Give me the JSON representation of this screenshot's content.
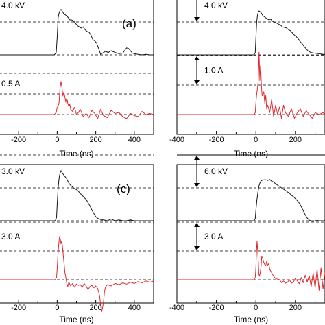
{
  "colors": {
    "voltage": "#111111",
    "current": "#e0262b"
  },
  "chart_data": [
    {
      "type": "line",
      "panel_label": "(a)",
      "xlabel": "Time (ns)",
      "xlim": [
        -300,
        500
      ],
      "xticks": [
        "-200",
        "0",
        "200",
        "400"
      ],
      "xtick_values": [
        -200,
        0,
        200,
        400
      ],
      "voltage_scale": "4.0 kV",
      "current_scale": "0.5 A",
      "voltage_ref_solid_top": false,
      "series": [
        {
          "channel": "voltage",
          "x": [
            -300,
            -250,
            -200,
            -150,
            -100,
            -50,
            -15,
            -5,
            0,
            5,
            10,
            15,
            20,
            28,
            35,
            45,
            55,
            65,
            75,
            85,
            95,
            105,
            115,
            125,
            135,
            145,
            155,
            165,
            175,
            185,
            195,
            205,
            215,
            225,
            235,
            250,
            265,
            280,
            300,
            320,
            340,
            360,
            370,
            380,
            390,
            400,
            420,
            440,
            460,
            480,
            500
          ],
          "y": [
            0.0,
            0.0,
            0.0,
            0.0,
            0.0,
            0.0,
            0.0,
            0.2,
            1.5,
            3.2,
            3.6,
            3.8,
            3.9,
            3.7,
            3.5,
            3.4,
            3.25,
            3.0,
            3.0,
            2.9,
            2.7,
            2.5,
            2.4,
            2.3,
            2.4,
            2.15,
            2.0,
            1.95,
            1.7,
            1.3,
            1.2,
            1.0,
            0.55,
            0.05,
            0.15,
            0.3,
            0.2,
            0.35,
            0.2,
            0.1,
            0.15,
            0.6,
            0.55,
            0.35,
            0.15,
            0.1,
            0.05,
            0.0,
            0.05,
            0.0,
            0.0
          ]
        },
        {
          "channel": "current",
          "x": [
            -300,
            -250,
            -200,
            -150,
            -100,
            -50,
            -15,
            -5,
            0,
            5,
            10,
            15,
            20,
            25,
            30,
            35,
            40,
            45,
            50,
            55,
            60,
            65,
            70,
            80,
            90,
            100,
            110,
            120,
            135,
            150,
            165,
            180,
            195,
            210,
            225,
            240,
            260,
            280,
            300,
            320,
            340,
            360,
            380,
            400,
            420,
            440,
            460,
            480,
            500
          ],
          "y": [
            0.0,
            0.0,
            0.0,
            0.0,
            0.0,
            0.0,
            0.0,
            0.1,
            0.35,
            0.4,
            0.6,
            1.3,
            1.6,
            1.3,
            0.9,
            1.1,
            0.85,
            0.6,
            0.8,
            0.55,
            0.4,
            0.5,
            0.25,
            0.15,
            0.35,
            0.0,
            0.1,
            0.25,
            -0.1,
            0.05,
            -0.15,
            0.2,
            0.05,
            -0.2,
            0.25,
            -0.05,
            -0.15,
            0.2,
            0.05,
            0.1,
            -0.1,
            -0.2,
            0.05,
            -0.05,
            -0.1,
            0.15,
            0.0,
            0.05,
            0.0
          ]
        }
      ]
    },
    {
      "type": "line",
      "panel_label": "",
      "xlabel": "Time (ns)",
      "xlim": [
        -400,
        350
      ],
      "xticks": [
        "-400",
        "-200",
        "0",
        "200"
      ],
      "xtick_values": [
        -400,
        -200,
        0,
        200
      ],
      "voltage_scale": "4.0 kV",
      "current_scale": "1.0 A",
      "voltage_ref_solid_top": false,
      "series": [
        {
          "channel": "voltage",
          "x": [
            -400,
            -350,
            -300,
            -250,
            -200,
            -150,
            -100,
            -50,
            -10,
            -3,
            0,
            4,
            8,
            12,
            16,
            20,
            28,
            36,
            45,
            55,
            65,
            75,
            85,
            95,
            105,
            115,
            125,
            135,
            145,
            155,
            165,
            175,
            185,
            195,
            205,
            215,
            225,
            235,
            245,
            255,
            265,
            280,
            300,
            320,
            340,
            350
          ],
          "y": [
            0.0,
            0.0,
            0.0,
            0.0,
            0.0,
            0.0,
            0.0,
            0.0,
            0.0,
            0.2,
            1.5,
            3.0,
            3.6,
            3.9,
            4.0,
            3.95,
            3.8,
            3.55,
            3.45,
            3.3,
            3.2,
            3.25,
            3.05,
            2.95,
            2.9,
            2.8,
            2.7,
            2.55,
            2.5,
            2.45,
            2.3,
            2.2,
            2.0,
            1.8,
            1.65,
            1.45,
            1.2,
            1.0,
            0.75,
            0.55,
            0.35,
            0.2,
            0.15,
            0.1,
            0.05,
            0.05
          ]
        },
        {
          "channel": "current",
          "x": [
            -400,
            -350,
            -300,
            -250,
            -200,
            -150,
            -100,
            -50,
            -10,
            -3,
            0,
            4,
            8,
            12,
            16,
            20,
            24,
            28,
            32,
            36,
            40,
            45,
            50,
            55,
            60,
            70,
            80,
            90,
            100,
            110,
            120,
            130,
            140,
            150,
            165,
            180,
            195,
            210,
            225,
            240,
            255,
            270,
            285,
            300,
            320,
            340,
            350
          ],
          "y": [
            0.0,
            0.0,
            0.0,
            0.0,
            0.0,
            0.0,
            0.0,
            0.0,
            0.0,
            0.05,
            0.3,
            0.55,
            0.7,
            0.9,
            1.65,
            0.9,
            1.3,
            0.75,
            0.5,
            0.55,
            0.6,
            0.3,
            0.5,
            0.15,
            0.25,
            0.05,
            0.4,
            -0.05,
            0.25,
            0.0,
            0.2,
            -0.1,
            0.25,
            0.05,
            -0.05,
            0.15,
            -0.1,
            0.05,
            0.15,
            -0.05,
            0.1,
            0.0,
            -0.1,
            0.05,
            0.0,
            0.05,
            0.0
          ]
        }
      ]
    },
    {
      "type": "line",
      "panel_label": "(c)",
      "xlabel": "Time (ns)",
      "xlim": [
        -300,
        500
      ],
      "xticks": [
        "-200",
        "0",
        "200",
        "400"
      ],
      "xtick_values": [
        -200,
        0,
        200,
        400
      ],
      "voltage_scale": "3.0 kV",
      "current_scale": "3.0 A",
      "voltage_ref_solid_top": false,
      "series": [
        {
          "channel": "voltage",
          "x": [
            -300,
            -250,
            -200,
            -150,
            -100,
            -50,
            -10,
            -3,
            0,
            5,
            10,
            15,
            20,
            25,
            30,
            40,
            50,
            60,
            70,
            80,
            90,
            100,
            110,
            120,
            130,
            140,
            150,
            160,
            170,
            180,
            190,
            200,
            210,
            220,
            230,
            240,
            260,
            280,
            300,
            320,
            340,
            360,
            380,
            400,
            420,
            440,
            460,
            480,
            500
          ],
          "y": [
            0.0,
            0.0,
            0.0,
            0.0,
            0.0,
            0.0,
            0.0,
            0.2,
            1.0,
            2.0,
            2.6,
            2.9,
            3.05,
            2.95,
            2.85,
            2.7,
            2.55,
            2.3,
            2.15,
            2.05,
            1.95,
            1.9,
            1.8,
            1.65,
            1.55,
            1.4,
            1.3,
            1.1,
            0.9,
            0.65,
            0.45,
            0.25,
            0.15,
            0.1,
            0.05,
            0.05,
            0.0,
            0.1,
            0.0,
            0.05,
            0.0,
            0.0,
            0.05,
            0.0,
            0.0,
            0.0,
            0.0,
            0.0,
            0.0
          ]
        },
        {
          "channel": "current",
          "x": [
            -300,
            -250,
            -200,
            -150,
            -100,
            -50,
            -10,
            -3,
            0,
            4,
            8,
            12,
            16,
            20,
            24,
            28,
            32,
            36,
            40,
            45,
            50,
            55,
            60,
            70,
            80,
            90,
            100,
            110,
            120,
            130,
            140,
            150,
            160,
            170,
            180,
            190,
            200,
            210,
            220,
            225,
            230,
            235,
            240,
            245,
            250,
            260,
            280,
            300,
            320,
            340,
            360,
            380,
            400,
            420,
            440,
            460,
            480,
            500
          ],
          "y": [
            0.0,
            0.0,
            0.0,
            0.0,
            0.0,
            0.0,
            0.0,
            0.2,
            0.9,
            2.0,
            2.85,
            3.5,
            3.3,
            2.9,
            3.15,
            2.6,
            1.9,
            1.3,
            0.6,
            0.2,
            -0.3,
            -0.55,
            -0.2,
            -0.5,
            -0.3,
            -0.6,
            -0.35,
            -0.45,
            -0.4,
            -0.6,
            -0.3,
            -0.5,
            -0.8,
            -0.55,
            -0.45,
            -0.65,
            -0.5,
            -0.7,
            -1.3,
            -2.0,
            -2.6,
            -2.3,
            -1.8,
            -1.0,
            -0.6,
            -0.4,
            -0.5,
            -0.3,
            -0.4,
            -0.25,
            -0.35,
            -0.2,
            -0.3,
            -0.15,
            -0.25,
            -0.1,
            -0.2,
            -0.1
          ]
        }
      ]
    },
    {
      "type": "line",
      "panel_label": "",
      "xlabel": "Time (ns)",
      "xlim": [
        -400,
        350
      ],
      "xticks": [
        "-400",
        "-200",
        "0",
        "200"
      ],
      "xtick_values": [
        -400,
        -200,
        0,
        200
      ],
      "voltage_scale": "6.0 kV",
      "current_scale": "3.0 A",
      "voltage_ref_solid_top": true,
      "series": [
        {
          "channel": "voltage",
          "x": [
            -400,
            -350,
            -300,
            -250,
            -200,
            -150,
            -100,
            -50,
            -10,
            -3,
            0,
            5,
            10,
            15,
            20,
            25,
            30,
            40,
            50,
            60,
            70,
            80,
            90,
            100,
            110,
            120,
            130,
            140,
            150,
            160,
            170,
            180,
            190,
            200,
            210,
            220,
            230,
            240,
            250,
            260,
            270,
            280,
            290,
            300,
            310,
            320,
            330,
            340,
            350
          ],
          "y": [
            0.0,
            0.0,
            0.0,
            0.0,
            0.0,
            0.0,
            0.0,
            0.0,
            0.0,
            0.3,
            1.5,
            3.0,
            4.2,
            5.1,
            5.6,
            5.9,
            6.0,
            6.1,
            6.1,
            6.0,
            6.15,
            5.9,
            5.75,
            5.5,
            5.3,
            5.1,
            4.9,
            4.7,
            4.5,
            4.3,
            4.1,
            3.8,
            3.6,
            3.3,
            3.0,
            2.6,
            2.1,
            1.5,
            0.9,
            0.4,
            0.1,
            -0.05,
            -0.1,
            0.0,
            0.05,
            0.0,
            0.0,
            0.0,
            0.0
          ]
        },
        {
          "channel": "current",
          "x": [
            -400,
            -350,
            -300,
            -250,
            -200,
            -150,
            -100,
            -50,
            -10,
            -3,
            0,
            3,
            6,
            9,
            12,
            15,
            18,
            22,
            26,
            30,
            35,
            40,
            45,
            50,
            55,
            60,
            65,
            70,
            80,
            90,
            100,
            110,
            120,
            130,
            140,
            150,
            160,
            170,
            180,
            190,
            200,
            210,
            220,
            230,
            240,
            250,
            260,
            270,
            280,
            290,
            300,
            310,
            320,
            330,
            340,
            350
          ],
          "y": [
            0.0,
            0.0,
            0.0,
            0.0,
            0.0,
            0.0,
            0.0,
            0.0,
            0.0,
            0.2,
            1.0,
            2.4,
            3.3,
            2.6,
            1.6,
            0.5,
            0.3,
            0.6,
            1.1,
            2.0,
            1.8,
            1.5,
            1.3,
            1.2,
            1.6,
            1.2,
            1.4,
            0.9,
            0.6,
            0.3,
            0.1,
            0.05,
            0.0,
            -0.25,
            -0.1,
            -0.3,
            -0.2,
            0.0,
            -0.3,
            -0.2,
            0.1,
            -0.1,
            -0.35,
            0.2,
            -0.25,
            0.4,
            -0.2,
            0.35,
            -0.6,
            0.6,
            -0.7,
            0.9,
            -0.9,
            1.0,
            -0.8,
            0.6
          ]
        }
      ]
    }
  ]
}
